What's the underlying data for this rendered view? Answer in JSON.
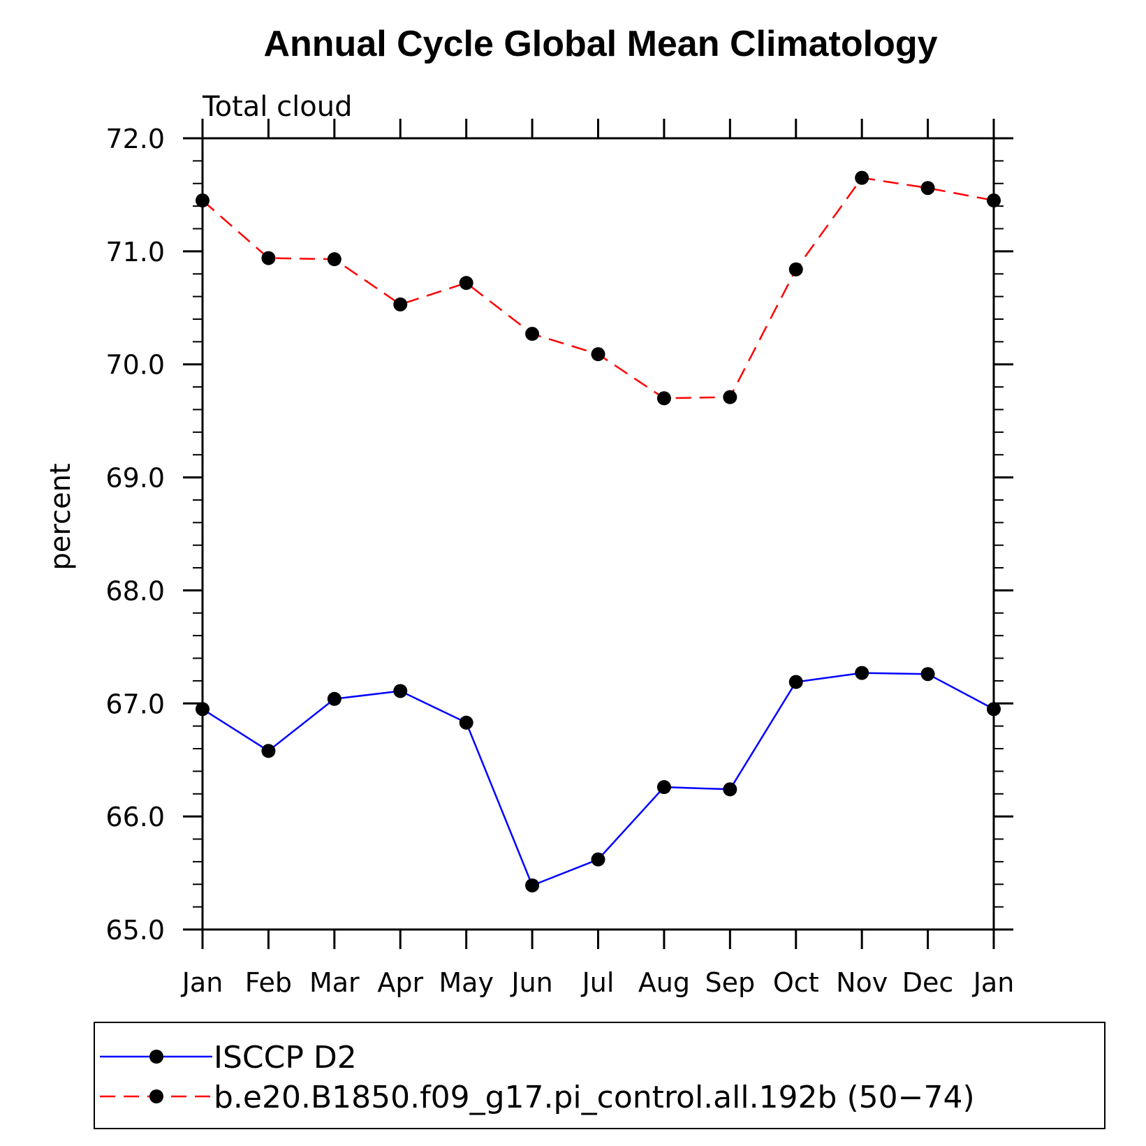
{
  "chart_data": {
    "type": "line",
    "title": "Annual Cycle Global Mean Climatology",
    "subtitle": "Total cloud",
    "xlabel": "",
    "ylabel": "percent",
    "categories": [
      "Jan",
      "Feb",
      "Mar",
      "Apr",
      "May",
      "Jun",
      "Jul",
      "Aug",
      "Sep",
      "Oct",
      "Nov",
      "Dec",
      "Jan"
    ],
    "ylim": [
      65.0,
      72.0
    ],
    "yticks": [
      "65.0",
      "66.0",
      "67.0",
      "68.0",
      "69.0",
      "70.0",
      "71.0",
      "72.0"
    ],
    "grid": false,
    "legend_position": "bottom",
    "series": [
      {
        "name": "ISCCP D2",
        "color": "#0000ff",
        "style": "solid",
        "marker": "filled-circle",
        "values": [
          66.95,
          66.58,
          67.04,
          67.11,
          66.83,
          65.39,
          65.62,
          66.26,
          66.24,
          67.19,
          67.27,
          67.26,
          66.95
        ]
      },
      {
        "name": "b.e20.B1850.f09_g17.pi_control.all.192b (50−74)",
        "color": "#ff0000",
        "style": "dashed",
        "marker": "filled-circle",
        "values": [
          71.45,
          70.94,
          70.93,
          70.53,
          70.72,
          70.27,
          70.09,
          69.7,
          69.71,
          70.84,
          71.65,
          71.56,
          71.45
        ]
      }
    ]
  }
}
